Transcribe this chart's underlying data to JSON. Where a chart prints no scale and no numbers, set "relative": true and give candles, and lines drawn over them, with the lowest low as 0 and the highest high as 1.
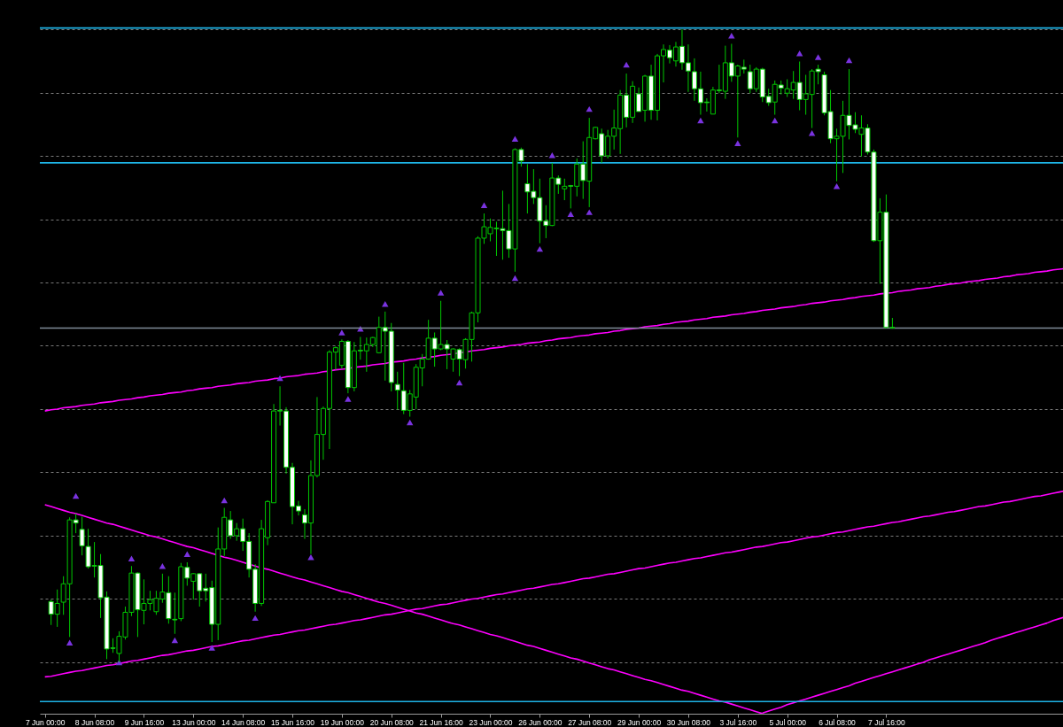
{
  "chart_data": {
    "type": "candlestick",
    "relative": true,
    "grid": "y",
    "tick_labels": "x",
    "categories": [
      "7 Jun 00:00",
      null,
      null,
      null,
      null,
      null,
      null,
      null,
      "8 Jun 08:00",
      null,
      null,
      null,
      null,
      null,
      null,
      null,
      "9 Jun 16:00",
      null,
      null,
      null,
      null,
      null,
      null,
      null,
      "13 Jun 00:00",
      null,
      null,
      null,
      null,
      null,
      null,
      null,
      "14 Jun 08:00",
      null,
      null,
      null,
      null,
      null,
      null,
      null,
      "15 Jun 16:00",
      null,
      null,
      null,
      null,
      null,
      null,
      null,
      "19 Jun 00:00",
      null,
      null,
      null,
      null,
      null,
      null,
      null,
      "20 Jun 08:00",
      null,
      null,
      null,
      null,
      null,
      null,
      null,
      "21 Jun 16:00",
      null,
      null,
      null,
      null,
      null,
      null,
      null,
      "23 Jun 00:00",
      null,
      null,
      null,
      null,
      null,
      null,
      null,
      "26 Jun 00:00",
      null,
      null,
      null,
      null,
      null,
      null,
      null,
      "27 Jun 08:00",
      null,
      null,
      null,
      null,
      null,
      null,
      null,
      "29 Jun 00:00",
      null,
      null,
      null,
      null,
      null,
      null,
      null,
      "30 Jun 08:00",
      null,
      null,
      null,
      null,
      null,
      null,
      null,
      "3 Jul 16:00",
      null,
      null,
      null,
      null,
      null,
      null,
      null,
      "5 Jul 00:00",
      null,
      null,
      null,
      null,
      null,
      null,
      null,
      "6 Jul 08:00",
      null,
      null,
      null,
      null,
      null,
      null,
      null,
      "7 Jul 16:00",
      null,
      null,
      null,
      null,
      null,
      null,
      null,
      null,
      null,
      null,
      null,
      null,
      null,
      null,
      null,
      null,
      null,
      null,
      null,
      null,
      null,
      null,
      null,
      null,
      null,
      null,
      null,
      null,
      null
    ],
    "ohlc": [
      null,
      [
        0.096,
        0.099,
        0.059,
        0.076
      ],
      [
        0.076,
        0.115,
        0.056,
        0.093
      ],
      [
        0.095,
        0.136,
        0.075,
        0.124
      ],
      [
        0.124,
        0.229,
        0.04,
        0.225
      ],
      [
        0.225,
        0.235,
        0.204,
        0.22
      ],
      [
        0.21,
        0.23,
        0.169,
        0.184
      ],
      [
        0.183,
        0.211,
        0.148,
        0.151
      ],
      [
        0.153,
        0.19,
        0.134,
        0.152
      ],
      [
        0.153,
        0.171,
        0.07,
        0.102
      ],
      [
        0.103,
        0.112,
        0.005,
        0.021
      ],
      [
        0.023,
        0.038,
        0.015,
        0.022
      ],
      [
        0.014,
        0.049,
        0,
        0.041
      ],
      [
        0.04,
        0.088,
        0.036,
        0.079
      ],
      [
        0.079,
        0.152,
        0.073,
        0.141
      ],
      [
        0.141,
        0.142,
        0.04,
        0.083
      ],
      [
        0.082,
        0.131,
        0.06,
        0.093
      ],
      [
        0.093,
        0.113,
        0.082,
        0.099
      ],
      [
        0.08,
        0.113,
        0.075,
        0.101
      ],
      [
        0.1,
        0.14,
        0.094,
        0.111
      ],
      [
        0.11,
        0.136,
        0.061,
        0.069
      ],
      [
        0.068,
        0.11,
        0.045,
        0.067
      ],
      [
        0.069,
        0.157,
        0.065,
        0.151
      ],
      [
        0.15,
        0.158,
        0.121,
        0.133
      ],
      [
        0.128,
        0.141,
        0.099,
        0.14
      ],
      [
        0.14,
        0.141,
        0.088,
        0.113
      ],
      [
        0.117,
        0.14,
        0.096,
        0.113
      ],
      [
        0.118,
        0.129,
        0.032,
        0.06
      ],
      [
        0.06,
        0.213,
        0.035,
        0.179
      ],
      [
        0.179,
        0.244,
        0.168,
        0.229
      ],
      [
        0.225,
        0.239,
        0.195,
        0.2
      ],
      [
        0.2,
        0.22,
        0.192,
        0.211
      ],
      [
        0.211,
        0.227,
        0.176,
        0.191
      ],
      [
        0.191,
        0.204,
        0.134,
        0.147
      ],
      [
        0.147,
        0.155,
        0.08,
        0.093
      ],
      [
        0.093,
        0.225,
        0.089,
        0.211
      ],
      [
        0.197,
        0.256,
        0.185,
        0.254
      ],
      [
        0.252,
        0.408,
        0.252,
        0.397
      ],
      [
        0.398,
        0.436,
        0.374,
        0.397
      ],
      [
        0.397,
        0.403,
        0.298,
        0.308
      ],
      [
        0.308,
        0.315,
        0.218,
        0.246
      ],
      [
        0.247,
        0.255,
        0.232,
        0.239
      ],
      [
        0.233,
        0.242,
        0.195,
        0.22
      ],
      [
        0.22,
        0.319,
        0.171,
        0.295
      ],
      [
        0.295,
        0.419,
        0.292,
        0.36
      ],
      [
        0.36,
        0.404,
        0.32,
        0.401
      ],
      [
        0.401,
        0.493,
        0.337,
        0.49
      ],
      [
        0.49,
        0.499,
        0.462,
        0.497
      ],
      [
        0.469,
        0.51,
        0.464,
        0.507
      ],
      [
        0.507,
        0.509,
        0.425,
        0.434
      ],
      [
        0.434,
        0.506,
        0.428,
        0.492
      ],
      [
        0.493,
        0.514,
        0.478,
        0.492
      ],
      [
        0.492,
        0.513,
        0.459,
        0.502
      ],
      [
        0.502,
        0.514,
        0.498,
        0.513
      ],
      [
        0.489,
        0.546,
        0.488,
        0.529
      ],
      [
        0.529,
        0.554,
        0.445,
        0.523
      ],
      [
        0.523,
        0.536,
        0.428,
        0.442
      ],
      [
        0.439,
        0.459,
        0.399,
        0.43
      ],
      [
        0.429,
        0.473,
        0.392,
        0.398
      ],
      [
        0.398,
        0.43,
        0.388,
        0.424
      ],
      [
        0.419,
        0.471,
        0.4,
        0.466
      ],
      [
        0.465,
        0.487,
        0.436,
        0.479
      ],
      [
        0.479,
        0.541,
        0.478,
        0.512
      ],
      [
        0.512,
        0.521,
        0.467,
        0.495
      ],
      [
        0.495,
        0.571,
        0.493,
        0.502
      ],
      [
        0.502,
        0.509,
        0.463,
        0.495
      ],
      [
        0.479,
        0.496,
        0.459,
        0.495
      ],
      [
        0.494,
        0.496,
        0.452,
        0.479
      ],
      [
        0.478,
        0.512,
        0.464,
        0.51
      ],
      [
        0.51,
        0.554,
        0.475,
        0.552
      ],
      [
        0.552,
        0.673,
        0.537,
        0.67
      ],
      [
        0.67,
        0.709,
        0.661,
        0.688
      ],
      [
        0.677,
        0.701,
        0.665,
        0.687
      ],
      [
        0.686,
        0.696,
        0.642,
        0.685
      ],
      [
        0.685,
        0.745,
        0.636,
        0.682
      ],
      [
        0.682,
        0.724,
        0.639,
        0.653
      ],
      [
        0.653,
        0.812,
        0.617,
        0.81
      ],
      [
        0.81,
        0.813,
        0.783,
        0.792
      ],
      [
        0.756,
        0.787,
        0.709,
        0.743
      ],
      [
        0.744,
        0.779,
        0.724,
        0.734
      ],
      [
        0.734,
        0.764,
        0.662,
        0.697
      ],
      [
        0.697,
        0.722,
        0.67,
        0.69
      ],
      [
        0.69,
        0.789,
        0.689,
        0.765
      ],
      [
        0.765,
        0.769,
        0.74,
        0.755
      ],
      [
        0.748,
        0.764,
        0.73,
        0.752
      ],
      [
        0.753,
        0.754,
        0.717,
        0.752
      ],
      [
        0.752,
        0.796,
        0.736,
        0.787
      ],
      [
        0.787,
        0.823,
        0.732,
        0.761
      ],
      [
        0.76,
        0.86,
        0.719,
        0.829
      ],
      [
        0.827,
        0.846,
        0.826,
        0.845
      ],
      [
        0.835,
        0.843,
        0.789,
        0.8
      ],
      [
        0.8,
        0.841,
        0.796,
        0.831
      ],
      [
        0.831,
        0.873,
        0.81,
        0.844
      ],
      [
        0.843,
        0.904,
        0.803,
        0.896
      ],
      [
        0.896,
        0.93,
        0.845,
        0.861
      ],
      [
        0.861,
        0.918,
        0.852,
        0.91
      ],
      [
        0.898,
        0.908,
        0.87,
        0.87
      ],
      [
        0.872,
        0.928,
        0.854,
        0.926
      ],
      [
        0.926,
        0.944,
        0.857,
        0.872
      ],
      [
        0.872,
        0.961,
        0.856,
        0.958
      ],
      [
        0.958,
        0.976,
        0.916,
        0.968
      ],
      [
        0.967,
        0.975,
        0.946,
        0.955
      ],
      [
        0.95,
        0.98,
        0.941,
        0.972
      ],
      [
        0.973,
        1,
        0.936,
        0.947
      ],
      [
        0.947,
        0.976,
        0.901,
        0.934
      ],
      [
        0.933,
        0.954,
        0.887,
        0.906
      ],
      [
        0.906,
        0.933,
        0.865,
        0.884
      ],
      [
        0.885,
        0.891,
        0.87,
        0.884
      ],
      [
        0.866,
        0.909,
        0.866,
        0.904
      ],
      [
        0.904,
        0.944,
        0.899,
        0.903
      ],
      [
        0.902,
        0.974,
        0.89,
        0.947
      ],
      [
        0.947,
        0.977,
        0.917,
        0.926
      ],
      [
        0.926,
        0.944,
        0.829,
        0.942
      ],
      [
        0.94,
        0.952,
        0.93,
        0.937
      ],
      [
        0.933,
        0.944,
        0.899,
        0.906
      ],
      [
        0.906,
        0.94,
        0.901,
        0.937
      ],
      [
        0.937,
        0.939,
        0.885,
        0.893
      ],
      [
        0.894,
        0.906,
        0.879,
        0.884
      ],
      [
        0.885,
        0.919,
        0.865,
        0.913
      ],
      [
        0.912,
        0.919,
        0.897,
        0.907
      ],
      [
        0.899,
        0.921,
        0.893,
        0.906
      ],
      [
        0.904,
        0.934,
        0.89,
        0.916
      ],
      [
        0.916,
        0.949,
        0.872,
        0.889
      ],
      [
        0.889,
        0.928,
        0.865,
        0.898
      ],
      [
        0.897,
        0.937,
        0.844,
        0.934
      ],
      [
        0.937,
        0.944,
        0.913,
        0.933
      ],
      [
        0.928,
        0.933,
        0.864,
        0.868
      ],
      [
        0.87,
        0.904,
        0.82,
        0.827
      ],
      [
        0.827,
        0.843,
        0.76,
        0.831
      ],
      [
        0.831,
        0.887,
        0.773,
        0.864
      ],
      [
        0.864,
        0.937,
        0.826,
        0.848
      ],
      [
        0.849,
        0.869,
        0.836,
        0.842
      ],
      [
        0.834,
        0.864,
        0.799,
        0.844
      ],
      [
        0.844,
        0.85,
        0.802,
        0.806
      ],
      [
        0.806,
        0.81,
        0.664,
        0.666
      ],
      [
        0.666,
        0.733,
        0.598,
        0.711
      ],
      [
        0.711,
        0.739,
        0.528,
        0.529
      ],
      [
        0.529,
        0.544,
        0.527,
        0.528
      ],
      null,
      null,
      null,
      null,
      null,
      null,
      null,
      null,
      null,
      null,
      null,
      null,
      null,
      null,
      null,
      null,
      null,
      null,
      null,
      null,
      null,
      null,
      null,
      null,
      null,
      null,
      null,
      null
    ],
    "series": [
      {
        "type": "line",
        "color": "#ff00ff",
        "values": [
          0.397,
          0.399,
          0.4,
          0.402,
          0.403,
          0.404,
          0.406,
          0.407,
          0.408,
          0.41,
          0.411,
          0.412,
          0.414,
          0.415,
          0.416,
          0.418,
          0.419,
          0.421,
          0.422,
          0.423,
          0.425,
          0.426,
          0.427,
          0.429,
          0.43,
          0.432,
          0.433,
          0.434,
          0.436,
          0.437,
          0.438,
          0.44,
          0.441,
          0.442,
          0.444,
          0.445,
          0.446,
          0.448,
          0.449,
          0.451,
          0.452,
          0.453,
          0.455,
          0.456,
          0.457,
          0.459,
          0.46,
          0.462,
          0.463,
          0.464,
          0.466,
          0.467,
          0.468,
          0.47,
          0.471,
          0.472,
          0.474,
          0.475,
          0.476,
          0.478,
          0.479,
          0.481,
          0.482,
          0.483,
          0.485,
          0.486,
          0.487,
          0.489,
          0.49,
          0.492,
          0.493,
          0.494,
          0.496,
          0.497,
          0.498,
          0.5,
          0.501,
          0.502,
          0.504,
          0.505,
          0.506,
          0.508,
          0.509,
          0.511,
          0.512,
          0.513,
          0.515,
          0.516,
          0.517,
          0.519,
          0.52,
          0.521,
          0.523,
          0.524,
          0.526,
          0.527,
          0.528,
          0.53,
          0.531,
          0.532,
          0.534,
          0.535,
          0.537,
          0.538,
          0.539,
          0.541,
          0.542,
          0.543,
          0.545,
          0.546,
          0.547,
          0.549,
          0.55,
          0.551,
          0.553,
          0.554,
          0.556,
          0.557,
          0.558,
          0.56,
          0.561,
          0.562,
          0.564,
          0.565,
          0.567,
          0.568,
          0.569,
          0.571,
          0.572,
          0.573,
          0.575,
          0.576,
          0.578,
          0.579,
          0.58,
          0.582,
          0.583,
          0.584,
          0.586,
          0.587,
          0.588,
          0.59,
          0.591,
          0.592,
          0.594,
          0.595,
          0.597,
          0.598,
          0.599,
          0.601,
          0.602,
          0.603,
          0.605,
          0.606,
          0.607,
          0.609,
          0.61,
          0.612,
          0.613,
          0.614,
          0.616,
          0.617,
          0.618,
          0.62,
          0.621,
          0.622
        ]
      },
      {
        "type": "line",
        "color": "#ff00ff",
        "values": [
          0.249,
          0.246,
          0.243,
          0.24,
          0.237,
          0.235,
          0.232,
          0.229,
          0.226,
          0.223,
          0.22,
          0.218,
          0.215,
          0.212,
          0.209,
          0.206,
          0.203,
          0.2,
          0.198,
          0.195,
          0.192,
          0.189,
          0.186,
          0.183,
          0.181,
          0.178,
          0.175,
          0.172,
          0.169,
          0.166,
          0.164,
          0.161,
          0.158,
          0.155,
          0.152,
          0.149,
          0.147,
          0.144,
          0.141,
          0.138,
          0.135,
          0.132,
          0.13,
          0.127,
          0.124,
          0.121,
          0.118,
          0.115,
          0.112,
          0.11,
          0.107,
          0.104,
          0.101,
          0.098,
          0.095,
          0.093,
          0.09,
          0.087,
          0.084,
          0.081,
          0.078,
          0.076,
          0.073,
          0.07,
          0.067,
          0.064,
          0.061,
          0.059,
          0.056,
          0.053,
          0.05,
          0.047,
          0.044,
          0.042,
          0.039,
          0.036,
          0.033,
          0.03,
          0.027,
          0.025,
          0.022,
          0.019,
          0.016,
          0.013,
          0.01,
          0.007,
          0.005,
          0.002,
          -0.001,
          -0.004,
          -0.007,
          -0.01,
          -0.012,
          -0.015,
          -0.018,
          -0.021,
          -0.024,
          -0.027,
          -0.029,
          -0.032,
          -0.035,
          -0.038,
          -0.041,
          -0.044,
          -0.046,
          -0.049,
          -0.052,
          -0.055,
          -0.058,
          -0.061,
          -0.063,
          -0.066,
          -0.069,
          -0.072,
          -0.075,
          -0.078,
          -0.081,
          null,
          null,
          null,
          null,
          null,
          null,
          null,
          null,
          null,
          null,
          null,
          null,
          null,
          null,
          null,
          null,
          null,
          null,
          null,
          null,
          null,
          null,
          null,
          null,
          null,
          null,
          null,
          null,
          null,
          null,
          null,
          null,
          null,
          null,
          null,
          null,
          null,
          null,
          null,
          null,
          null,
          null,
          null,
          null,
          null,
          null,
          null,
          null,
          null
        ]
      },
      {
        "type": "line",
        "color": "#ff00ff",
        "values": [
          -0.023,
          -0.022,
          -0.02,
          -0.018,
          -0.016,
          -0.014,
          -0.013,
          -0.011,
          -0.009,
          -0.007,
          -0.005,
          -0.004,
          -0.002,
          0,
          0.002,
          0.003,
          0.005,
          0.007,
          0.009,
          0.011,
          0.012,
          0.014,
          0.016,
          0.018,
          0.019,
          0.021,
          0.023,
          0.025,
          0.026,
          0.028,
          0.03,
          0.032,
          0.034,
          0.035,
          0.037,
          0.039,
          0.041,
          0.043,
          0.044,
          0.046,
          0.048,
          0.05,
          0.051,
          0.053,
          0.055,
          0.057,
          0.059,
          0.06,
          0.062,
          0.064,
          0.066,
          0.067,
          0.069,
          0.071,
          0.073,
          0.075,
          0.076,
          0.078,
          0.08,
          0.082,
          0.084,
          0.085,
          0.087,
          0.089,
          0.091,
          0.092,
          0.094,
          0.096,
          0.098,
          0.1,
          0.101,
          0.103,
          0.105,
          0.107,
          0.108,
          0.11,
          0.112,
          0.114,
          0.116,
          0.117,
          0.119,
          0.121,
          0.123,
          0.124,
          0.126,
          0.128,
          0.13,
          0.132,
          0.133,
          0.135,
          0.137,
          0.139,
          0.14,
          0.142,
          0.144,
          0.146,
          0.148,
          0.149,
          0.151,
          0.153,
          0.155,
          0.157,
          0.158,
          0.16,
          0.162,
          0.164,
          0.165,
          0.167,
          0.169,
          0.171,
          0.173,
          0.174,
          0.176,
          0.178,
          0.18,
          0.182,
          0.183,
          0.185,
          0.187,
          0.189,
          0.19,
          0.192,
          0.194,
          0.196,
          0.198,
          0.199,
          0.201,
          0.203,
          0.205,
          0.206,
          0.208,
          0.21,
          0.212,
          0.214,
          0.215,
          0.217,
          0.219,
          0.221,
          0.222,
          0.224,
          0.226,
          0.228,
          0.23,
          0.231,
          0.233,
          0.235,
          0.237,
          0.238,
          0.24,
          0.242,
          0.244,
          0.246,
          0.247,
          0.249,
          0.251,
          0.253,
          0.254,
          0.256,
          0.258,
          0.26,
          0.262,
          0.263,
          0.265,
          0.267,
          0.269,
          0.271
        ]
      },
      {
        "type": "line",
        "color": "#ff00ff",
        "values": [
          null,
          null,
          null,
          null,
          null,
          null,
          null,
          null,
          null,
          null,
          null,
          null,
          null,
          null,
          null,
          null,
          null,
          null,
          null,
          null,
          null,
          null,
          null,
          null,
          null,
          null,
          null,
          null,
          null,
          null,
          null,
          null,
          null,
          null,
          null,
          null,
          null,
          null,
          null,
          null,
          null,
          null,
          null,
          null,
          null,
          null,
          null,
          null,
          null,
          null,
          null,
          null,
          null,
          null,
          null,
          null,
          null,
          null,
          null,
          null,
          null,
          null,
          null,
          null,
          null,
          null,
          null,
          null,
          null,
          null,
          null,
          null,
          null,
          null,
          null,
          null,
          null,
          null,
          null,
          null,
          null,
          null,
          null,
          null,
          null,
          null,
          null,
          null,
          null,
          null,
          null,
          null,
          null,
          null,
          null,
          null,
          null,
          null,
          null,
          null,
          null,
          null,
          null,
          null,
          null,
          null,
          null,
          null,
          null,
          null,
          null,
          null,
          null,
          null,
          null,
          null,
          -0.08,
          -0.077,
          -0.074,
          -0.071,
          -0.067,
          -0.064,
          -0.061,
          -0.058,
          -0.055,
          -0.052,
          -0.049,
          -0.046,
          -0.043,
          -0.04,
          -0.037,
          -0.033,
          -0.03,
          -0.027,
          -0.024,
          -0.021,
          -0.018,
          -0.015,
          -0.012,
          -0.009,
          -0.006,
          -0.003,
          0,
          0.004,
          0.007,
          0.01,
          0.013,
          0.016,
          0.019,
          0.022,
          0.025,
          0.028,
          0.031,
          0.035,
          0.038,
          0.041,
          0.044,
          0.047,
          0.05,
          0.053,
          0.056,
          0.059,
          0.062,
          0.066,
          0.069,
          0.072
        ]
      },
      {
        "type": "scatter",
        "color": "#7a33e0",
        "marker": "triangle",
        "values": [
          null,
          null,
          null,
          null,
          null,
          0.263,
          null,
          null,
          null,
          null,
          null,
          null,
          null,
          null,
          0.164,
          null,
          null,
          null,
          null,
          0.152,
          null,
          null,
          null,
          0.171,
          null,
          null,
          null,
          null,
          null,
          0.256,
          null,
          null,
          null,
          null,
          null,
          null,
          null,
          null,
          0.449,
          null,
          null,
          null,
          null,
          null,
          null,
          null,
          null,
          null,
          0.521,
          null,
          null,
          0.527,
          null,
          null,
          null,
          0.566,
          null,
          null,
          null,
          null,
          null,
          null,
          null,
          null,
          0.584,
          null,
          null,
          null,
          null,
          null,
          null,
          0.722,
          null,
          null,
          null,
          null,
          0.827,
          null,
          null,
          null,
          null,
          null,
          0.801,
          null,
          null,
          null,
          null,
          null,
          0.874,
          null,
          null,
          null,
          null,
          null,
          0.944,
          null,
          null,
          null,
          null,
          null,
          null,
          null,
          null,
          null,
          null,
          null,
          null,
          null,
          null,
          null,
          null,
          0.99,
          null,
          null,
          null,
          null,
          null,
          null,
          null,
          null,
          null,
          null,
          0.962,
          null,
          null,
          0.956,
          null,
          null,
          null,
          null,
          0.951,
          null,
          null,
          null,
          null,
          null,
          null,
          null,
          null,
          null,
          null,
          null,
          null,
          null,
          null,
          null,
          null,
          null,
          null,
          null,
          null,
          null,
          null,
          null,
          null,
          null,
          null,
          null,
          null,
          null,
          null,
          null,
          null,
          null,
          null,
          null
        ]
      },
      {
        "type": "scatter",
        "color": "#7a33e0",
        "marker": "triangle",
        "values": [
          null,
          null,
          null,
          null,
          0.031,
          null,
          null,
          null,
          null,
          null,
          null,
          null,
          0,
          null,
          null,
          null,
          null,
          null,
          null,
          null,
          null,
          0.035,
          null,
          null,
          null,
          null,
          null,
          0.023,
          null,
          null,
          null,
          null,
          null,
          null,
          0.07,
          null,
          null,
          null,
          null,
          null,
          null,
          null,
          null,
          0.166,
          null,
          null,
          null,
          null,
          null,
          0.416,
          null,
          null,
          null,
          null,
          null,
          null,
          null,
          null,
          null,
          0.379,
          null,
          null,
          null,
          null,
          null,
          null,
          null,
          0.442,
          null,
          null,
          null,
          null,
          null,
          null,
          null,
          null,
          0.607,
          null,
          null,
          null,
          0.653,
          null,
          null,
          null,
          null,
          0.708,
          null,
          null,
          0.711,
          null,
          null,
          null,
          null,
          null,
          null,
          null,
          null,
          null,
          null,
          null,
          null,
          null,
          null,
          null,
          null,
          null,
          0.856,
          null,
          null,
          null,
          null,
          null,
          0.82,
          null,
          null,
          null,
          null,
          null,
          0.856,
          null,
          null,
          null,
          null,
          null,
          0.836,
          null,
          null,
          null,
          0.752,
          null,
          null,
          null,
          null,
          null,
          null,
          null,
          null,
          null,
          null,
          null,
          null,
          null,
          null,
          null,
          null,
          null,
          null,
          null,
          null,
          null,
          null,
          null,
          null,
          null,
          null,
          null,
          null,
          null,
          null,
          null,
          null,
          null,
          null,
          null,
          null,
          null
        ]
      }
    ],
    "ref_lines": [
      {
        "axis": "y",
        "value": 1.002,
        "color": "#1eb4e6"
      },
      {
        "axis": "y",
        "value": 0.789,
        "color": "#1eb4e6"
      },
      {
        "axis": "y",
        "value": -0.062,
        "color": "#1eb4e6"
      },
      {
        "axis": "y",
        "value": 0.528,
        "color": "#7f8c99"
      }
    ]
  }
}
